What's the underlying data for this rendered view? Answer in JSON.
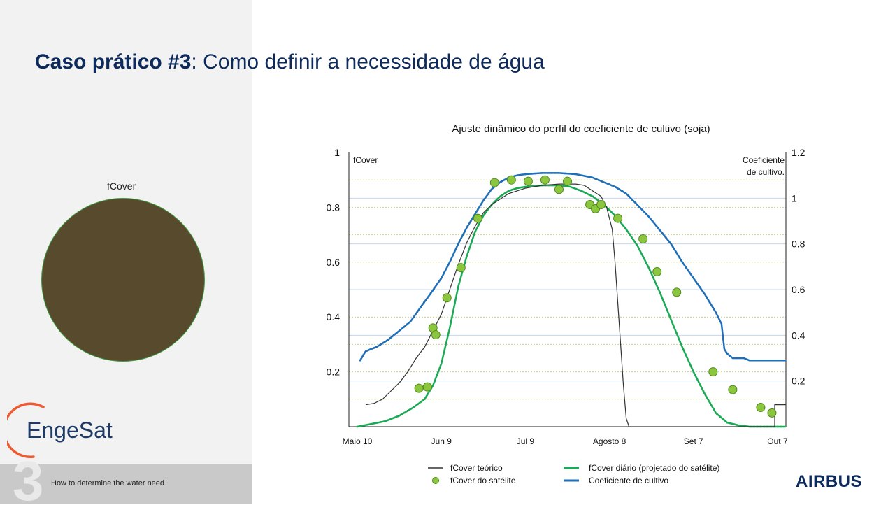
{
  "slide": {
    "title_bold": "Caso prático #3",
    "title_rest": ": Como definir a necessidade de água",
    "disc_label": "fCover",
    "logo_text": "EngeSat",
    "footer_number": "3",
    "footer_text": "How to determine the water need",
    "airbus_text": "AIRBUS"
  },
  "colors": {
    "title": "#0d2a5c",
    "disc": "#574a2d",
    "green": "#1aaa55",
    "blue": "#1f6eb8",
    "theory": "#333333",
    "sat_fill": "#8cc63f",
    "sat_stroke": "#4e8a1e",
    "logo": "#ef5a32"
  },
  "chart_data": {
    "type": "line",
    "title": "Ajuste dinâmico do perfil do coeficiente de cultivo (soja)",
    "left_axis_label": "fCover",
    "right_axis_label_1": "Coeficiente",
    "right_axis_label_2": "de cultivo.",
    "x_tick_labels": [
      "Maio 10",
      "Jun 9",
      "Jul 9",
      "Agosto 8",
      "Set 7",
      "Out 7"
    ],
    "x_tick_days": [
      0,
      30,
      60,
      90,
      120,
      150
    ],
    "xlim": [
      -3,
      153
    ],
    "ylim_left": [
      0,
      1
    ],
    "ylim_right": [
      0,
      1.2
    ],
    "y_left_tick_labels": [
      "0.2",
      "0.4",
      "0.6",
      "0.8",
      "1"
    ],
    "y_left_ticks": [
      0.2,
      0.4,
      0.6,
      0.8,
      1
    ],
    "y_right_tick_labels": [
      "0.2",
      "0.4",
      "0.6",
      "0.8",
      "1",
      "1.2"
    ],
    "y_right_ticks": [
      0.2,
      0.4,
      0.6,
      0.8,
      1.0,
      1.2
    ],
    "gridlines": true,
    "legend_position": "bottom",
    "series": [
      {
        "name": "fCover teórico",
        "axis": "left",
        "style": "line",
        "points": [
          [
            3,
            0.08
          ],
          [
            6,
            0.085
          ],
          [
            9,
            0.1
          ],
          [
            12,
            0.13
          ],
          [
            15,
            0.16
          ],
          [
            18,
            0.2
          ],
          [
            21,
            0.25
          ],
          [
            24,
            0.29
          ],
          [
            27,
            0.35
          ],
          [
            30,
            0.41
          ],
          [
            33,
            0.5
          ],
          [
            36,
            0.59
          ],
          [
            39,
            0.67
          ],
          [
            42,
            0.73
          ],
          [
            45,
            0.78
          ],
          [
            48,
            0.81
          ],
          [
            51,
            0.83
          ],
          [
            54,
            0.85
          ],
          [
            57,
            0.86
          ],
          [
            60,
            0.87
          ],
          [
            66,
            0.88
          ],
          [
            72,
            0.885
          ],
          [
            78,
            0.885
          ],
          [
            81,
            0.88
          ],
          [
            84,
            0.86
          ],
          [
            87,
            0.84
          ],
          [
            89,
            0.8
          ],
          [
            91,
            0.72
          ],
          [
            92,
            0.6
          ],
          [
            93,
            0.45
          ],
          [
            94,
            0.3
          ],
          [
            95,
            0.15
          ],
          [
            96,
            0.03
          ],
          [
            97,
            0
          ],
          [
            149,
            0
          ],
          [
            149,
            0.08
          ],
          [
            154,
            0.08
          ]
        ]
      },
      {
        "name": "fCover diário (projetado do satélite)",
        "axis": "left",
        "style": "dotted-line",
        "points": [
          [
            0,
            0
          ],
          [
            5,
            0.01
          ],
          [
            10,
            0.02
          ],
          [
            15,
            0.04
          ],
          [
            20,
            0.07
          ],
          [
            24,
            0.1
          ],
          [
            27,
            0.15
          ],
          [
            30,
            0.23
          ],
          [
            33,
            0.36
          ],
          [
            36,
            0.51
          ],
          [
            39,
            0.62
          ],
          [
            42,
            0.71
          ],
          [
            45,
            0.77
          ],
          [
            48,
            0.81
          ],
          [
            51,
            0.84
          ],
          [
            54,
            0.86
          ],
          [
            57,
            0.87
          ],
          [
            60,
            0.875
          ],
          [
            66,
            0.88
          ],
          [
            72,
            0.88
          ],
          [
            76,
            0.875
          ],
          [
            80,
            0.86
          ],
          [
            84,
            0.84
          ],
          [
            88,
            0.81
          ],
          [
            92,
            0.77
          ],
          [
            96,
            0.72
          ],
          [
            100,
            0.66
          ],
          [
            104,
            0.58
          ],
          [
            108,
            0.49
          ],
          [
            112,
            0.39
          ],
          [
            116,
            0.29
          ],
          [
            120,
            0.2
          ],
          [
            124,
            0.12
          ],
          [
            128,
            0.05
          ],
          [
            132,
            0.015
          ],
          [
            136,
            0.005
          ],
          [
            140,
            0
          ],
          [
            154,
            0
          ]
        ]
      },
      {
        "name": "fCover do satélite",
        "axis": "left",
        "style": "points",
        "points": [
          [
            22,
            0.14
          ],
          [
            25,
            0.145
          ],
          [
            27,
            0.36
          ],
          [
            28,
            0.335
          ],
          [
            32,
            0.47
          ],
          [
            37,
            0.58
          ],
          [
            43,
            0.76
          ],
          [
            49,
            0.89
          ],
          [
            55,
            0.9
          ],
          [
            61,
            0.895
          ],
          [
            67,
            0.9
          ],
          [
            72,
            0.865
          ],
          [
            75,
            0.895
          ],
          [
            83,
            0.81
          ],
          [
            85,
            0.795
          ],
          [
            87,
            0.81
          ],
          [
            93,
            0.76
          ],
          [
            102,
            0.685
          ],
          [
            107,
            0.565
          ],
          [
            114,
            0.49
          ],
          [
            127,
            0.2
          ],
          [
            134,
            0.135
          ],
          [
            144,
            0.07
          ],
          [
            148,
            0.05
          ]
        ]
      },
      {
        "name": "Coeficiente de cultivo",
        "axis": "right",
        "style": "stepped-line",
        "points": [
          [
            1,
            0.29
          ],
          [
            3,
            0.33
          ],
          [
            7,
            0.35
          ],
          [
            11,
            0.38
          ],
          [
            15,
            0.42
          ],
          [
            19,
            0.46
          ],
          [
            23,
            0.53
          ],
          [
            26,
            0.58
          ],
          [
            30,
            0.65
          ],
          [
            33,
            0.72
          ],
          [
            36,
            0.8
          ],
          [
            39,
            0.87
          ],
          [
            42,
            0.93
          ],
          [
            45,
            0.99
          ],
          [
            48,
            1.04
          ],
          [
            51,
            1.07
          ],
          [
            54,
            1.09
          ],
          [
            57,
            1.1
          ],
          [
            60,
            1.105
          ],
          [
            66,
            1.11
          ],
          [
            72,
            1.11
          ],
          [
            78,
            1.105
          ],
          [
            84,
            1.09
          ],
          [
            88,
            1.07
          ],
          [
            92,
            1.05
          ],
          [
            96,
            1.02
          ],
          [
            100,
            0.97
          ],
          [
            104,
            0.92
          ],
          [
            108,
            0.86
          ],
          [
            112,
            0.8
          ],
          [
            116,
            0.72
          ],
          [
            120,
            0.65
          ],
          [
            124,
            0.58
          ],
          [
            128,
            0.5
          ],
          [
            130,
            0.45
          ],
          [
            131,
            0.34
          ],
          [
            132,
            0.32
          ],
          [
            134,
            0.3
          ],
          [
            138,
            0.3
          ],
          [
            140,
            0.29
          ],
          [
            150,
            0.29
          ],
          [
            154,
            0.29
          ]
        ]
      }
    ]
  }
}
